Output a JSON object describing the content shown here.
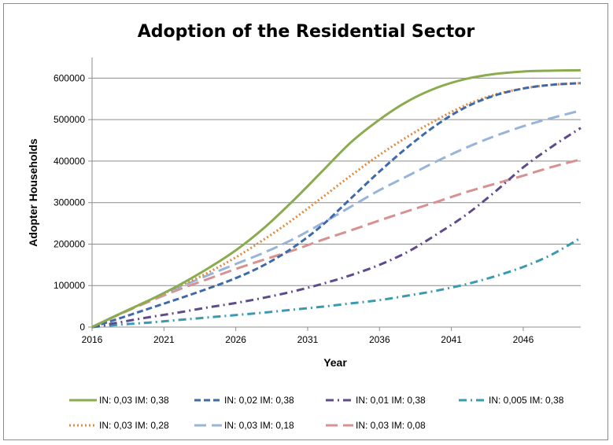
{
  "chart_data": {
    "type": "line",
    "title": "Adoption of the Residential Sector",
    "xlabel": "Year",
    "ylabel": "Adopter Households",
    "xlim": [
      2016,
      2050
    ],
    "ylim": [
      0,
      650000
    ],
    "x_ticks": [
      "2016",
      "2021",
      "2026",
      "2031",
      "2036",
      "2041",
      "2046"
    ],
    "y_ticks": [
      "0",
      "100000",
      "200000",
      "300000",
      "400000",
      "500000",
      "600000"
    ],
    "grid": "horizontal",
    "legend_position": "bottom",
    "x": [
      2016,
      2018,
      2020,
      2022,
      2024,
      2026,
      2028,
      2030,
      2032,
      2034,
      2036,
      2038,
      2040,
      2042,
      2044,
      2046,
      2048,
      2050
    ],
    "series": [
      {
        "name": "IN: 0,03 IM: 0,38",
        "color": "#8aac4e",
        "dash": "solid",
        "values": [
          0,
          33000,
          65000,
          100000,
          140000,
          185000,
          240000,
          305000,
          375000,
          445000,
          500000,
          545000,
          577000,
          598000,
          610000,
          616000,
          618000,
          619000
        ]
      },
      {
        "name": "IN: 0,02 IM: 0,38",
        "color": "#3f6aaa",
        "dash": "dash",
        "values": [
          0,
          22000,
          45000,
          68000,
          92000,
          118000,
          150000,
          192000,
          245000,
          310000,
          375000,
          435000,
          488000,
          530000,
          558000,
          575000,
          584000,
          588000
        ]
      },
      {
        "name": "IN: 0,01 IM: 0,38",
        "color": "#5f4b8a",
        "dash": "dashdot",
        "values": [
          0,
          12000,
          24000,
          35000,
          47000,
          58000,
          71000,
          86000,
          104000,
          125000,
          150000,
          182000,
          224000,
          270000,
          325000,
          385000,
          435000,
          480000
        ]
      },
      {
        "name": "IN: 0,005 IM: 0,38",
        "color": "#3a9ab0",
        "dash": "dashdot",
        "values": [
          0,
          6000,
          11000,
          17000,
          23000,
          29000,
          35000,
          42000,
          49000,
          57000,
          65000,
          76000,
          88000,
          103000,
          122000,
          145000,
          175000,
          215000
        ]
      },
      {
        "name": "IN: 0,03 IM: 0,28",
        "color": "#e0893f",
        "dash": "dot",
        "values": [
          0,
          33000,
          65000,
          97000,
          130000,
          168000,
          212000,
          260000,
          312000,
          365000,
          415000,
          460000,
          500000,
          535000,
          560000,
          575000,
          584000,
          588000
        ]
      },
      {
        "name": "IN: 0,03 IM: 0,18",
        "color": "#98b4da",
        "dash": "longdash",
        "values": [
          0,
          33000,
          65000,
          95000,
          124000,
          152000,
          180000,
          212000,
          250000,
          290000,
          330000,
          365000,
          400000,
          432000,
          460000,
          484000,
          504000,
          522000
        ]
      },
      {
        "name": "IN: 0,03 IM: 0,08",
        "color": "#d89090",
        "dash": "longdash",
        "values": [
          0,
          32000,
          62000,
          90000,
          115000,
          140000,
          163000,
          185000,
          210000,
          233000,
          257000,
          280000,
          302000,
          325000,
          345000,
          365000,
          386000,
          404000
        ]
      }
    ]
  }
}
